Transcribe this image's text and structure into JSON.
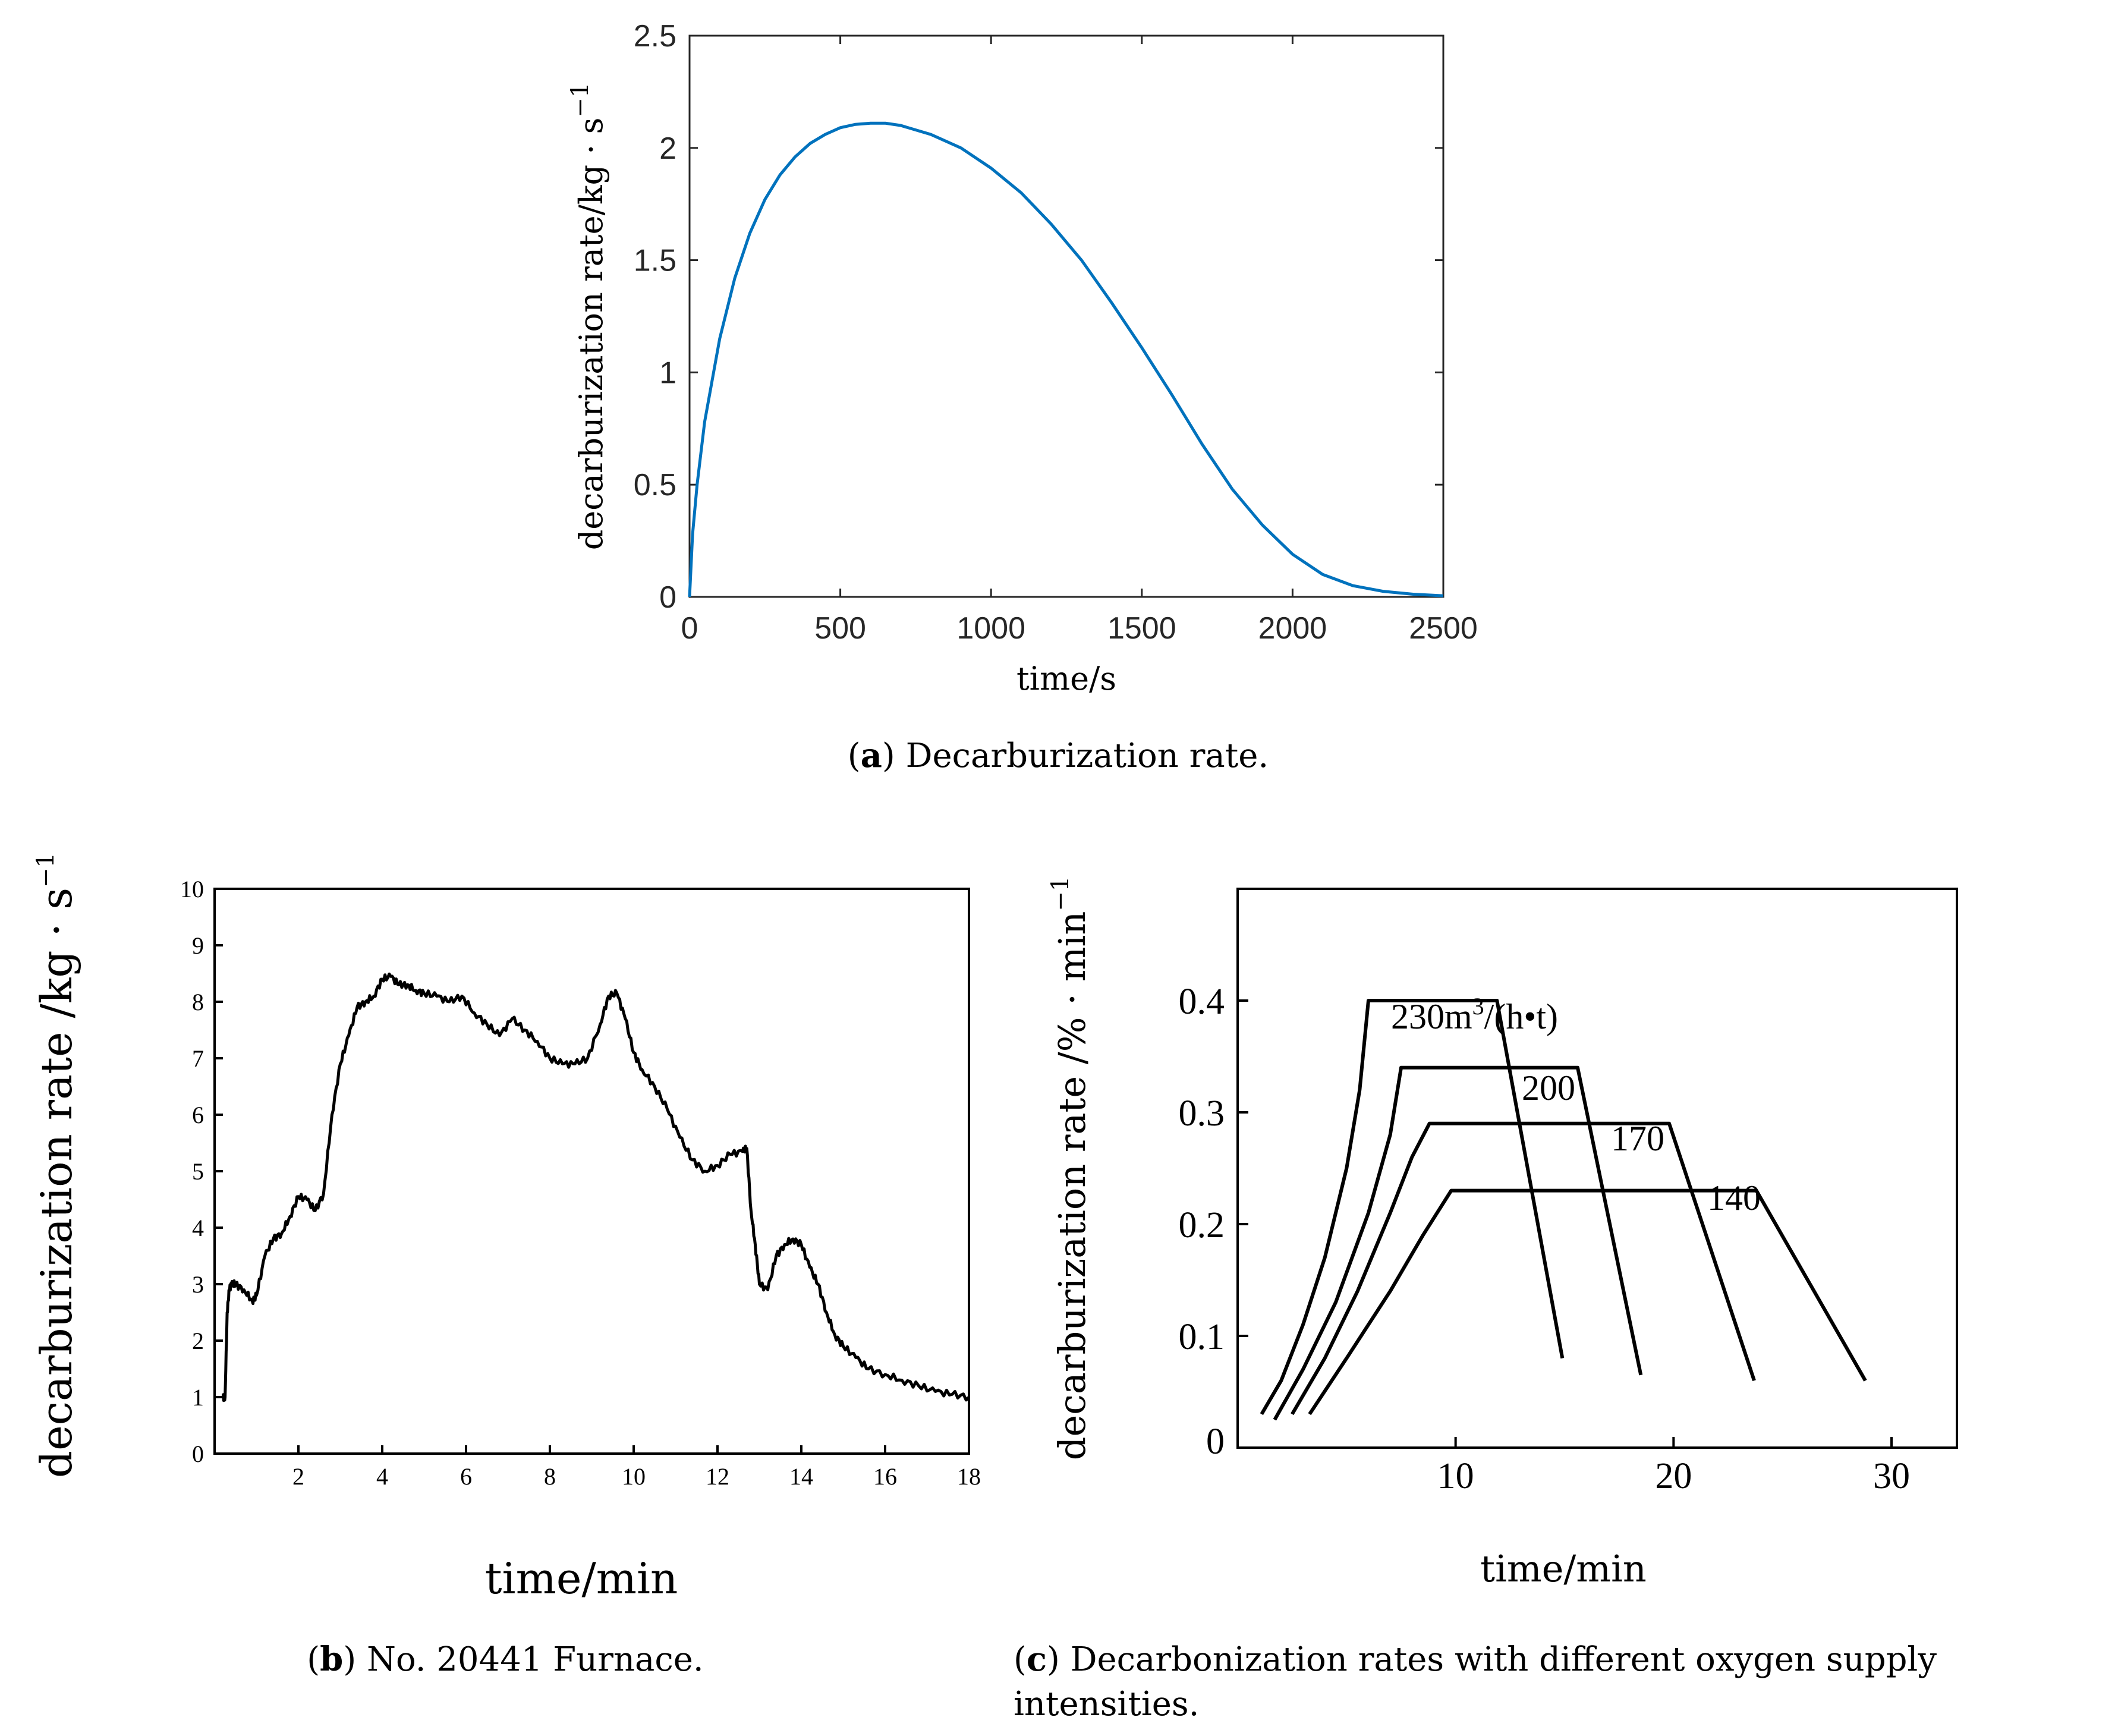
{
  "chart_data": [
    {
      "id": "a",
      "type": "line",
      "caption_letter": "a",
      "caption_text": "Decarburization rate.",
      "xlabel": "time/s",
      "ylabel": "decarburization rate/kg · s",
      "ylabel_sup": "−1",
      "xlim": [
        0,
        2500
      ],
      "ylim": [
        0,
        2.5
      ],
      "xticks": [
        0,
        500,
        1000,
        1500,
        2000,
        2500
      ],
      "xtick_labels": [
        "0",
        "500",
        "1000",
        "1500",
        "2000",
        "2500"
      ],
      "yticks": [
        0,
        0.5,
        1,
        1.5,
        2,
        2.5
      ],
      "ytick_labels": [
        "0",
        "0.5",
        "1",
        "1.5",
        "2",
        "2.5"
      ],
      "series_color": "#0072BD",
      "x": [
        0,
        10,
        25,
        50,
        100,
        150,
        200,
        250,
        300,
        350,
        400,
        450,
        500,
        550,
        600,
        650,
        700,
        800,
        900,
        1000,
        1100,
        1200,
        1300,
        1400,
        1500,
        1600,
        1700,
        1800,
        1900,
        2000,
        2100,
        2200,
        2300,
        2400,
        2500
      ],
      "y": [
        0,
        0.28,
        0.5,
        0.78,
        1.15,
        1.42,
        1.62,
        1.77,
        1.88,
        1.96,
        2.02,
        2.06,
        2.09,
        2.105,
        2.11,
        2.11,
        2.1,
        2.06,
        2.0,
        1.91,
        1.8,
        1.66,
        1.5,
        1.31,
        1.11,
        0.9,
        0.68,
        0.48,
        0.32,
        0.19,
        0.1,
        0.05,
        0.025,
        0.012,
        0.005
      ]
    },
    {
      "id": "b",
      "type": "line",
      "caption_letter": "b",
      "caption_text": "No. 20441 Furnace.",
      "xlabel": "time/min",
      "ylabel": "decarburization rate /kg · s",
      "ylabel_sup": "−1",
      "xlim": [
        0,
        18
      ],
      "ylim": [
        0,
        10
      ],
      "xticks": [
        2,
        4,
        6,
        8,
        10,
        12,
        14,
        16,
        18
      ],
      "xtick_labels": [
        "2",
        "4",
        "6",
        "8",
        "10",
        "12",
        "14",
        "16",
        "18"
      ],
      "yticks": [
        0,
        1,
        2,
        3,
        4,
        5,
        6,
        7,
        8,
        9,
        10
      ],
      "ytick_labels": [
        "0",
        "1",
        "2",
        "3",
        "4",
        "5",
        "6",
        "7",
        "8",
        "9",
        "10"
      ],
      "series_color": "#000000",
      "x": [
        0.2,
        0.25,
        0.3,
        0.35,
        0.4,
        0.5,
        0.7,
        0.9,
        1.0,
        1.2,
        1.4,
        1.6,
        1.8,
        2.0,
        2.2,
        2.4,
        2.6,
        2.8,
        3.0,
        3.2,
        3.4,
        3.6,
        3.8,
        4.0,
        4.2,
        4.4,
        4.6,
        4.8,
        5.0,
        5.3,
        5.6,
        5.9,
        6.2,
        6.5,
        6.8,
        7.1,
        7.4,
        7.7,
        8.0,
        8.3,
        8.6,
        8.9,
        9.2,
        9.4,
        9.6,
        9.8,
        10.0,
        10.2,
        10.5,
        10.8,
        11.1,
        11.4,
        11.7,
        12.0,
        12.3,
        12.6,
        12.7,
        12.8,
        12.9,
        13.0,
        13.2,
        13.4,
        13.6,
        13.8,
        14.0,
        14.2,
        14.4,
        14.6,
        14.8,
        15.0,
        15.3,
        15.6,
        16.0,
        16.4,
        16.8,
        17.2,
        17.6,
        18.0
      ],
      "y": [
        1.0,
        1.0,
        2.5,
        2.9,
        3.0,
        3.0,
        2.9,
        2.7,
        2.8,
        3.5,
        3.8,
        3.9,
        4.2,
        4.55,
        4.5,
        4.3,
        4.6,
        6.0,
        6.9,
        7.4,
        7.9,
        8.0,
        8.1,
        8.4,
        8.45,
        8.3,
        8.3,
        8.2,
        8.15,
        8.1,
        8.0,
        8.1,
        7.8,
        7.6,
        7.4,
        7.7,
        7.5,
        7.3,
        7.0,
        6.9,
        6.9,
        7.0,
        7.6,
        8.1,
        8.15,
        7.7,
        7.1,
        6.8,
        6.5,
        6.1,
        5.6,
        5.2,
        5.0,
        5.1,
        5.3,
        5.35,
        5.4,
        4.3,
        3.7,
        3.0,
        2.9,
        3.5,
        3.7,
        3.8,
        3.7,
        3.3,
        3.0,
        2.5,
        2.1,
        1.9,
        1.7,
        1.5,
        1.4,
        1.3,
        1.2,
        1.1,
        1.05,
        1.0
      ]
    },
    {
      "id": "c",
      "type": "line",
      "caption_letter": "c",
      "caption_text_line1": "Decarbonization rates with different oxygen supply",
      "caption_text_line2": "intensities.",
      "xlabel": "time/min",
      "ylabel": "decarburization rate /% · min",
      "ylabel_sup": "−1",
      "xlim": [
        0,
        33
      ],
      "ylim": [
        0,
        0.5
      ],
      "xticks": [
        10,
        20,
        30
      ],
      "xtick_labels": [
        "10",
        "20",
        "30"
      ],
      "yticks": [
        0.1,
        0.2,
        0.3,
        0.4
      ],
      "ytick_labels": [
        "0.1",
        "0.2",
        "0.3",
        "0.4"
      ],
      "zero_label": "0",
      "series_color": "#000000",
      "series": [
        {
          "name": "230",
          "label": "230m",
          "label_sup": "3",
          "label_tail": "/(h•t)",
          "x": [
            1.1,
            2.0,
            3.0,
            4.0,
            5.0,
            5.6,
            6.0,
            11.9,
            14.9
          ],
          "y": [
            0.03,
            0.06,
            0.11,
            0.17,
            0.25,
            0.32,
            0.4,
            0.4,
            0.08
          ]
        },
        {
          "name": "200",
          "label": "200",
          "x": [
            1.7,
            3.0,
            4.5,
            6.0,
            7.0,
            7.5,
            15.6,
            18.5
          ],
          "y": [
            0.025,
            0.07,
            0.13,
            0.21,
            0.28,
            0.34,
            0.34,
            0.065
          ]
        },
        {
          "name": "170",
          "label": "170",
          "x": [
            2.5,
            4.0,
            5.5,
            7.0,
            8.0,
            8.8,
            19.8,
            23.7
          ],
          "y": [
            0.03,
            0.08,
            0.14,
            0.21,
            0.26,
            0.29,
            0.29,
            0.06
          ]
        },
        {
          "name": "140",
          "label": "140",
          "x": [
            3.3,
            5.0,
            7.0,
            8.5,
            9.8,
            23.8,
            28.8
          ],
          "y": [
            0.03,
            0.08,
            0.14,
            0.19,
            0.23,
            0.23,
            0.06
          ]
        }
      ]
    }
  ]
}
